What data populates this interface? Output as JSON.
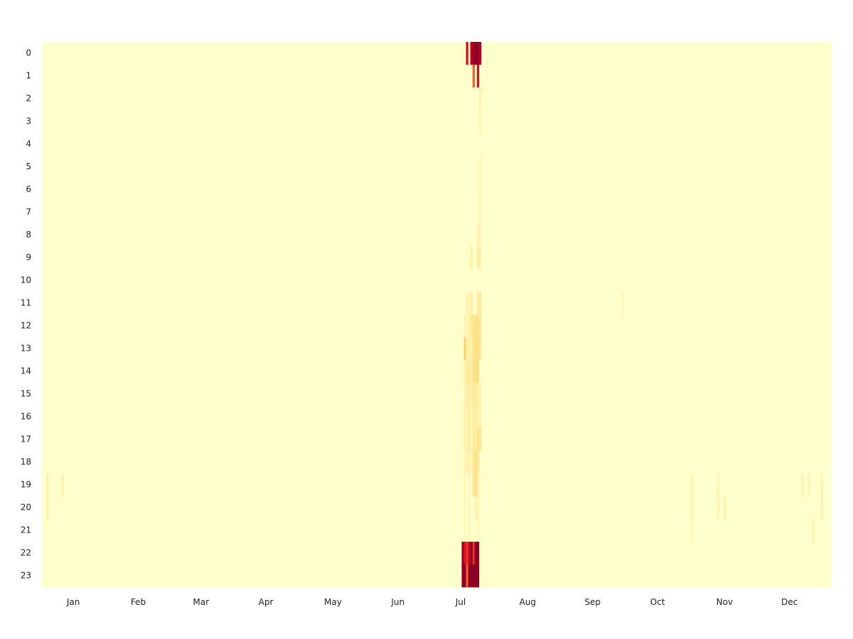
{
  "chart_data": {
    "type": "heatmap",
    "title": "",
    "xlabel": "",
    "ylabel": "",
    "x_unit": "day of year",
    "x_range": [
      1,
      365
    ],
    "x_tick_labels": [
      "Jan",
      "Feb",
      "Mar",
      "Apr",
      "May",
      "Jun",
      "Jul",
      "Aug",
      "Sep",
      "Oct",
      "Nov",
      "Dec"
    ],
    "x_tick_days": [
      15,
      45,
      74,
      104,
      135,
      165,
      194,
      225,
      255,
      285,
      316,
      346
    ],
    "y_tick_labels": [
      "0",
      "1",
      "2",
      "3",
      "4",
      "5",
      "6",
      "7",
      "8",
      "9",
      "10",
      "11",
      "12",
      "13",
      "14",
      "15",
      "16",
      "17",
      "18",
      "19",
      "20",
      "21",
      "22",
      "23"
    ],
    "value_scale": [
      0,
      1
    ],
    "colormap": [
      "#ffffcc",
      "#ffeda0",
      "#fed976",
      "#feb24c",
      "#fd8d3c",
      "#fc4e2a",
      "#e31a1c",
      "#bd0026",
      "#800026"
    ],
    "background_value": 0,
    "cells": [
      [
        197,
        0,
        0.85
      ],
      [
        198,
        0,
        0.1
      ],
      [
        199,
        0,
        0.9
      ],
      [
        200,
        0,
        0.92
      ],
      [
        201,
        0,
        0.98
      ],
      [
        202,
        0,
        0.95
      ],
      [
        203,
        0,
        0.9
      ],
      [
        200,
        1,
        0.6
      ],
      [
        202,
        1,
        0.8
      ],
      [
        203,
        2,
        0.08
      ],
      [
        203,
        3,
        0.06
      ],
      [
        203,
        5,
        0.05
      ],
      [
        203,
        6,
        0.05
      ],
      [
        203,
        7,
        0.06
      ],
      [
        202,
        8,
        0.08
      ],
      [
        203,
        8,
        0.06
      ],
      [
        199,
        9,
        0.1
      ],
      [
        202,
        9,
        0.12
      ],
      [
        203,
        9,
        0.1
      ],
      [
        197,
        11,
        0.08
      ],
      [
        198,
        11,
        0.06
      ],
      [
        199,
        11,
        0.1
      ],
      [
        202,
        11,
        0.12
      ],
      [
        203,
        11,
        0.15
      ],
      [
        269,
        11,
        0.06
      ],
      [
        196,
        12,
        0.08
      ],
      [
        197,
        12,
        0.06
      ],
      [
        198,
        12,
        0.1
      ],
      [
        199,
        12,
        0.14
      ],
      [
        200,
        12,
        0.18
      ],
      [
        201,
        12,
        0.18
      ],
      [
        202,
        12,
        0.2
      ],
      [
        203,
        12,
        0.15
      ],
      [
        196,
        13,
        0.28
      ],
      [
        197,
        13,
        0.1
      ],
      [
        198,
        13,
        0.12
      ],
      [
        199,
        13,
        0.1
      ],
      [
        200,
        13,
        0.18
      ],
      [
        201,
        13,
        0.2
      ],
      [
        202,
        13,
        0.2
      ],
      [
        203,
        13,
        0.15
      ],
      [
        196,
        14,
        0.1
      ],
      [
        197,
        14,
        0.12
      ],
      [
        198,
        14,
        0.16
      ],
      [
        199,
        14,
        0.1
      ],
      [
        200,
        14,
        0.2
      ],
      [
        201,
        14,
        0.2
      ],
      [
        202,
        14,
        0.2
      ],
      [
        196,
        15,
        0.08
      ],
      [
        197,
        15,
        0.1
      ],
      [
        198,
        15,
        0.12
      ],
      [
        199,
        15,
        0.08
      ],
      [
        200,
        15,
        0.15
      ],
      [
        201,
        15,
        0.14
      ],
      [
        202,
        15,
        0.1
      ],
      [
        203,
        15,
        0.08
      ],
      [
        196,
        16,
        0.1
      ],
      [
        197,
        16,
        0.08
      ],
      [
        198,
        16,
        0.14
      ],
      [
        199,
        16,
        0.06
      ],
      [
        200,
        16,
        0.12
      ],
      [
        201,
        16,
        0.12
      ],
      [
        202,
        16,
        0.1
      ],
      [
        203,
        16,
        0.08
      ],
      [
        196,
        17,
        0.1
      ],
      [
        197,
        17,
        0.08
      ],
      [
        198,
        17,
        0.12
      ],
      [
        199,
        17,
        0.06
      ],
      [
        200,
        17,
        0.14
      ],
      [
        201,
        17,
        0.12
      ],
      [
        202,
        17,
        0.18
      ],
      [
        203,
        17,
        0.16
      ],
      [
        196,
        18,
        0.06
      ],
      [
        197,
        18,
        0.1
      ],
      [
        198,
        18,
        0.08
      ],
      [
        199,
        18,
        0.06
      ],
      [
        200,
        18,
        0.16
      ],
      [
        201,
        18,
        0.2
      ],
      [
        202,
        18,
        0.16
      ],
      [
        3,
        19,
        0.08
      ],
      [
        10,
        19,
        0.08
      ],
      [
        196,
        19,
        0.06
      ],
      [
        198,
        19,
        0.06
      ],
      [
        200,
        19,
        0.18
      ],
      [
        201,
        19,
        0.2
      ],
      [
        202,
        19,
        0.1
      ],
      [
        301,
        19,
        0.08
      ],
      [
        313,
        19,
        0.08
      ],
      [
        352,
        19,
        0.08
      ],
      [
        355,
        19,
        0.08
      ],
      [
        361,
        19,
        0.08
      ],
      [
        3,
        20,
        0.08
      ],
      [
        196,
        20,
        0.06
      ],
      [
        198,
        20,
        0.06
      ],
      [
        201,
        20,
        0.08
      ],
      [
        202,
        20,
        0.08
      ],
      [
        301,
        20,
        0.08
      ],
      [
        313,
        20,
        0.08
      ],
      [
        316,
        20,
        0.08
      ],
      [
        361,
        20,
        0.08
      ],
      [
        196,
        21,
        0.06
      ],
      [
        198,
        21,
        0.06
      ],
      [
        202,
        21,
        0.06
      ],
      [
        301,
        21,
        0.06
      ],
      [
        357,
        21,
        0.08
      ],
      [
        195,
        22,
        0.95
      ],
      [
        196,
        22,
        0.8
      ],
      [
        197,
        22,
        0.7
      ],
      [
        198,
        22,
        0.85
      ],
      [
        199,
        22,
        0.98
      ],
      [
        200,
        22,
        0.7
      ],
      [
        201,
        22,
        0.98
      ],
      [
        202,
        22,
        0.98
      ],
      [
        195,
        23,
        0.98
      ],
      [
        196,
        23,
        0.98
      ],
      [
        197,
        23,
        0.6
      ],
      [
        198,
        23,
        0.98
      ],
      [
        199,
        23,
        0.98
      ],
      [
        200,
        23,
        0.98
      ],
      [
        201,
        23,
        0.98
      ],
      [
        202,
        23,
        0.98
      ]
    ]
  }
}
